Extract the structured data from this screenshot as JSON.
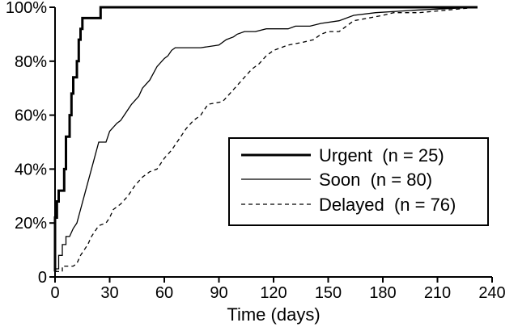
{
  "chart_data": {
    "type": "line",
    "title": "",
    "xlabel": "Time (days)",
    "ylabel": "",
    "xlim": [
      0,
      240
    ],
    "ylim": [
      0,
      100
    ],
    "x_ticks": [
      0,
      30,
      60,
      90,
      120,
      150,
      180,
      210,
      240
    ],
    "x_tick_labels": [
      "0",
      "30",
      "60",
      "90",
      "120",
      "150",
      "180",
      "210",
      "240"
    ],
    "y_ticks": [
      0,
      20,
      40,
      60,
      80,
      100
    ],
    "y_tick_labels": [
      "0",
      "20%",
      "40%",
      "60%",
      "80%",
      "100%"
    ],
    "grid": false,
    "legend_position": "lower-right",
    "series": [
      {
        "name": "Urgent",
        "legend_label": "Urgent  (n = 25)",
        "style": "thick-solid",
        "color": "#000000",
        "points": [
          [
            0,
            2
          ],
          [
            0,
            22
          ],
          [
            1,
            22
          ],
          [
            1,
            28
          ],
          [
            2,
            28
          ],
          [
            2,
            32
          ],
          [
            5,
            32
          ],
          [
            5,
            40
          ],
          [
            6,
            40
          ],
          [
            6,
            52
          ],
          [
            8,
            52
          ],
          [
            8,
            60
          ],
          [
            9,
            60
          ],
          [
            9,
            68
          ],
          [
            10,
            68
          ],
          [
            10,
            74
          ],
          [
            12,
            74
          ],
          [
            12,
            80
          ],
          [
            13,
            80
          ],
          [
            13,
            88
          ],
          [
            14,
            88
          ],
          [
            14,
            92
          ],
          [
            15,
            92
          ],
          [
            15,
            96
          ],
          [
            25,
            96
          ],
          [
            25,
            100
          ],
          [
            232,
            100
          ]
        ]
      },
      {
        "name": "Soon",
        "legend_label": "Soon  (n = 80)",
        "style": "thin-solid",
        "color": "#000000",
        "points": [
          [
            0,
            3
          ],
          [
            2,
            3
          ],
          [
            2,
            8
          ],
          [
            4,
            8
          ],
          [
            4,
            12
          ],
          [
            6,
            12
          ],
          [
            6,
            15
          ],
          [
            8,
            15
          ],
          [
            10,
            18
          ],
          [
            12,
            20
          ],
          [
            14,
            25
          ],
          [
            16,
            30
          ],
          [
            18,
            35
          ],
          [
            20,
            40
          ],
          [
            22,
            45
          ],
          [
            24,
            50
          ],
          [
            28,
            50
          ],
          [
            30,
            54
          ],
          [
            34,
            57
          ],
          [
            36,
            58
          ],
          [
            38,
            60
          ],
          [
            40,
            62
          ],
          [
            42,
            64
          ],
          [
            46,
            67
          ],
          [
            48,
            70
          ],
          [
            52,
            73
          ],
          [
            56,
            78
          ],
          [
            60,
            81
          ],
          [
            62,
            82
          ],
          [
            64,
            84
          ],
          [
            66,
            85
          ],
          [
            80,
            85
          ],
          [
            90,
            86
          ],
          [
            94,
            88
          ],
          [
            98,
            89
          ],
          [
            100,
            90
          ],
          [
            104,
            91
          ],
          [
            110,
            91
          ],
          [
            116,
            92
          ],
          [
            128,
            92
          ],
          [
            132,
            93
          ],
          [
            140,
            93
          ],
          [
            146,
            94
          ],
          [
            156,
            95
          ],
          [
            164,
            97
          ],
          [
            176,
            98
          ],
          [
            200,
            99
          ],
          [
            232,
            100
          ]
        ]
      },
      {
        "name": "Delayed",
        "legend_label": "Delayed  (n = 76)",
        "style": "dashed",
        "color": "#000000",
        "points": [
          [
            0,
            2
          ],
          [
            4,
            2
          ],
          [
            4,
            4
          ],
          [
            10,
            4
          ],
          [
            12,
            5
          ],
          [
            14,
            8
          ],
          [
            16,
            10
          ],
          [
            18,
            12
          ],
          [
            20,
            15
          ],
          [
            22,
            17
          ],
          [
            24,
            19
          ],
          [
            28,
            20
          ],
          [
            30,
            22
          ],
          [
            32,
            25
          ],
          [
            36,
            27
          ],
          [
            40,
            30
          ],
          [
            44,
            34
          ],
          [
            48,
            37
          ],
          [
            52,
            39
          ],
          [
            56,
            40
          ],
          [
            60,
            44
          ],
          [
            64,
            47
          ],
          [
            68,
            51
          ],
          [
            72,
            55
          ],
          [
            76,
            58
          ],
          [
            80,
            60
          ],
          [
            84,
            64
          ],
          [
            92,
            65
          ],
          [
            96,
            68
          ],
          [
            100,
            71
          ],
          [
            104,
            74
          ],
          [
            108,
            77
          ],
          [
            112,
            79
          ],
          [
            116,
            82
          ],
          [
            120,
            84
          ],
          [
            128,
            86
          ],
          [
            136,
            87
          ],
          [
            142,
            88
          ],
          [
            146,
            90
          ],
          [
            150,
            91
          ],
          [
            156,
            91
          ],
          [
            160,
            93
          ],
          [
            164,
            95
          ],
          [
            172,
            96
          ],
          [
            180,
            97
          ],
          [
            186,
            98
          ],
          [
            200,
            98
          ],
          [
            232,
            100
          ]
        ]
      }
    ]
  }
}
